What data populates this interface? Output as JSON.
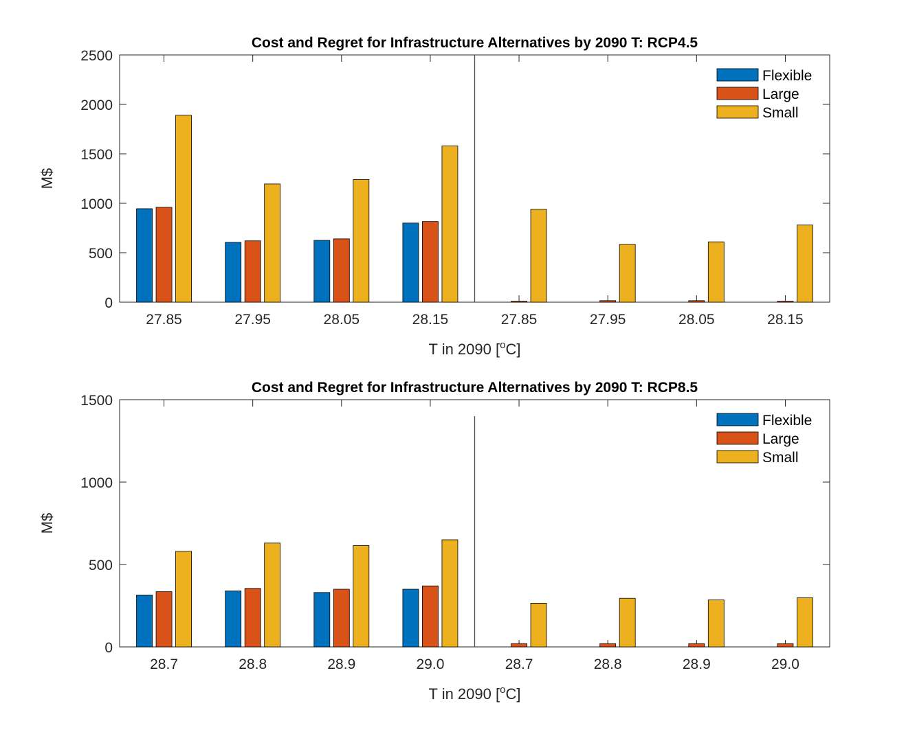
{
  "chart_data": [
    {
      "type": "bar",
      "title": "Cost and Regret for Infrastructure Alternatives by 2090 T: RCP4.5",
      "xlabel": "T in 2090 [",
      "xlabel_sup": "o",
      "xlabel_tail": "C]",
      "ylabel": "M$",
      "ylim": [
        0,
        2500
      ],
      "yticks": [
        0,
        500,
        1000,
        1500,
        2000,
        2500
      ],
      "categories": [
        "27.85",
        "27.95",
        "28.05",
        "28.15",
        "27.85",
        "27.95",
        "28.05",
        "28.15"
      ],
      "series": [
        {
          "name": "Flexible",
          "color": "#0072BD",
          "values": [
            945,
            605,
            625,
            800,
            0,
            0,
            0,
            0
          ]
        },
        {
          "name": "Large",
          "color": "#D95319",
          "values": [
            960,
            620,
            640,
            815,
            10,
            15,
            15,
            10
          ]
        },
        {
          "name": "Small",
          "color": "#EDB120",
          "values": [
            1890,
            1195,
            1240,
            1580,
            940,
            585,
            610,
            780
          ]
        }
      ],
      "divider_after_index": 3,
      "divider_top": 2500,
      "legend": "top-right",
      "grid": false
    },
    {
      "type": "bar",
      "title": "Cost and Regret for Infrastructure Alternatives by 2090 T: RCP8.5",
      "xlabel": "T in 2090 [",
      "xlabel_sup": "o",
      "xlabel_tail": "C]",
      "ylabel": "M$",
      "ylim": [
        0,
        1500
      ],
      "yticks": [
        0,
        500,
        1000,
        1500
      ],
      "categories": [
        "28.7",
        "28.8",
        "28.9",
        "29.0",
        "28.7",
        "28.8",
        "28.9",
        "29.0"
      ],
      "series": [
        {
          "name": "Flexible",
          "color": "#0072BD",
          "values": [
            315,
            340,
            330,
            350,
            0,
            0,
            0,
            0
          ]
        },
        {
          "name": "Large",
          "color": "#D95319",
          "values": [
            335,
            355,
            350,
            370,
            20,
            20,
            20,
            20
          ]
        },
        {
          "name": "Small",
          "color": "#EDB120",
          "values": [
            580,
            630,
            615,
            650,
            265,
            295,
            285,
            298
          ]
        }
      ],
      "divider_after_index": 3,
      "divider_top": 1400,
      "legend": "top-right",
      "grid": false
    }
  ]
}
